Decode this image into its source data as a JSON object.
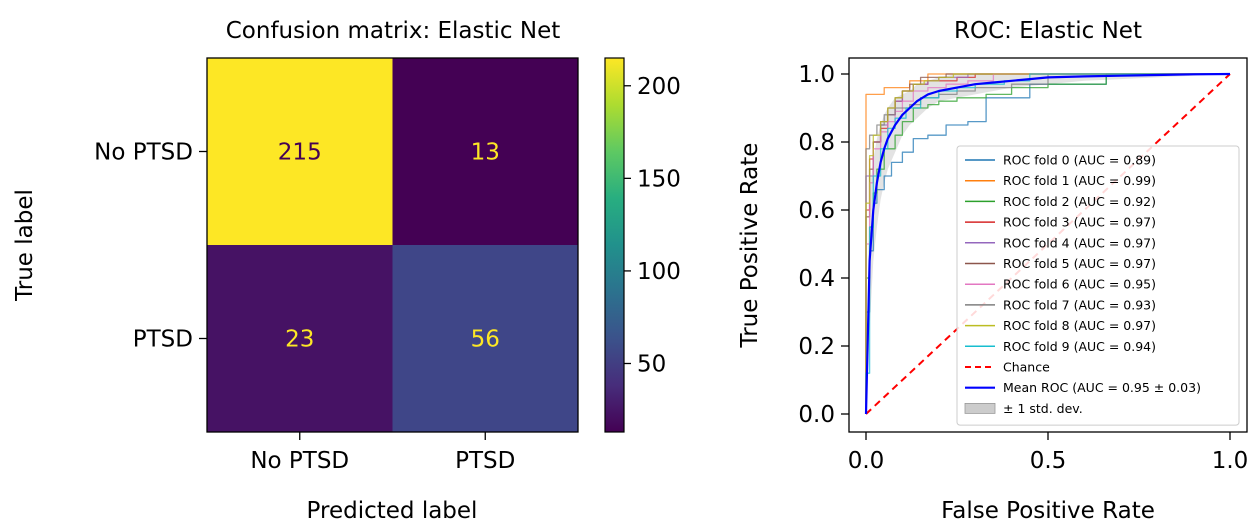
{
  "chart_data": [
    {
      "type": "heatmap",
      "title": "Confusion matrix: Elastic Net",
      "xlabel": "Predicted label",
      "ylabel": "True label",
      "x_categories": [
        "No PTSD",
        "PTSD"
      ],
      "y_categories": [
        "No PTSD",
        "PTSD"
      ],
      "values": [
        [
          215,
          13
        ],
        [
          23,
          56
        ]
      ],
      "colormap": "viridis",
      "colorbar": {
        "min": 13,
        "max": 215,
        "ticks": [
          50,
          100,
          150,
          200
        ],
        "tick_labels": [
          "50",
          "100",
          "150",
          "200"
        ]
      }
    },
    {
      "type": "line",
      "title": "ROC: Elastic Net",
      "xlabel": "False Positive Rate",
      "ylabel": "True Positive Rate",
      "xlim": [
        0,
        1
      ],
      "ylim": [
        0,
        1
      ],
      "x_ticks": [
        0.0,
        0.5,
        1.0
      ],
      "x_tick_labels": [
        "0.0",
        "0.5",
        "1.0"
      ],
      "y_ticks": [
        0.0,
        0.2,
        0.4,
        0.6,
        0.8,
        1.0
      ],
      "y_tick_labels": [
        "0.0",
        "0.2",
        "0.4",
        "0.6",
        "0.8",
        "1.0"
      ],
      "legend_position": "lower-right",
      "series": [
        {
          "name": "ROC fold 0 (AUC = 0.89)",
          "color": "#1f77b4",
          "x": [
            0,
            0.01,
            0.02,
            0.03,
            0.05,
            0.07,
            0.1,
            0.13,
            0.17,
            0.22,
            0.28,
            0.33,
            0.45,
            0.66,
            0.66,
            1.0
          ],
          "y": [
            0,
            0.3,
            0.48,
            0.62,
            0.66,
            0.7,
            0.74,
            0.77,
            0.81,
            0.82,
            0.85,
            0.86,
            0.93,
            0.97,
            1.0,
            1.0
          ]
        },
        {
          "name": "ROC fold 1 (AUC = 0.99)",
          "color": "#ff7f0e",
          "x": [
            0,
            0.0,
            0.02,
            0.05,
            0.08,
            0.1,
            0.12,
            0.15,
            0.17,
            0.17,
            1.0
          ],
          "y": [
            0,
            0.94,
            0.94,
            0.94,
            0.96,
            0.96,
            0.96,
            0.98,
            0.98,
            1.0,
            1.0
          ]
        },
        {
          "name": "ROC fold 2 (AUC = 0.92)",
          "color": "#2ca02c",
          "x": [
            0,
            0.01,
            0.02,
            0.03,
            0.05,
            0.08,
            0.1,
            0.13,
            0.17,
            0.2,
            0.25,
            0.33,
            0.4,
            0.5,
            0.66,
            0.66,
            1.0
          ],
          "y": [
            0,
            0.4,
            0.55,
            0.65,
            0.72,
            0.78,
            0.82,
            0.86,
            0.9,
            0.91,
            0.92,
            0.93,
            0.94,
            0.96,
            0.97,
            1.0,
            1.0
          ]
        },
        {
          "name": "ROC fold 3 (AUC = 0.97)",
          "color": "#d62728",
          "x": [
            0,
            0.01,
            0.02,
            0.04,
            0.06,
            0.08,
            0.1,
            0.13,
            0.17,
            0.2,
            0.25,
            0.3,
            0.3,
            1.0
          ],
          "y": [
            0,
            0.6,
            0.75,
            0.8,
            0.84,
            0.88,
            0.92,
            0.95,
            0.97,
            0.98,
            0.98,
            0.99,
            1.0,
            1.0
          ]
        },
        {
          "name": "ROC fold 4 (AUC = 0.97)",
          "color": "#9467bd",
          "x": [
            0,
            0.0,
            0.02,
            0.04,
            0.06,
            0.08,
            0.1,
            0.13,
            0.17,
            0.2,
            0.28,
            0.28,
            1.0
          ],
          "y": [
            0,
            0.56,
            0.7,
            0.8,
            0.85,
            0.88,
            0.92,
            0.95,
            0.97,
            0.98,
            0.99,
            1.0,
            1.0
          ]
        },
        {
          "name": "ROC fold 5 (AUC = 0.97)",
          "color": "#8c564b",
          "x": [
            0,
            0.01,
            0.02,
            0.04,
            0.06,
            0.08,
            0.1,
            0.12,
            0.15,
            0.18,
            0.22,
            0.22,
            1.0
          ],
          "y": [
            0,
            0.58,
            0.72,
            0.8,
            0.86,
            0.9,
            0.93,
            0.95,
            0.97,
            0.99,
            0.99,
            1.0,
            1.0
          ]
        },
        {
          "name": "ROC fold 6 (AUC = 0.95)",
          "color": "#e377c2",
          "x": [
            0,
            0.01,
            0.02,
            0.04,
            0.06,
            0.08,
            0.1,
            0.13,
            0.17,
            0.22,
            0.28,
            0.35,
            0.35,
            1.0
          ],
          "y": [
            0,
            0.5,
            0.68,
            0.78,
            0.83,
            0.86,
            0.89,
            0.92,
            0.95,
            0.96,
            0.97,
            0.98,
            1.0,
            1.0
          ]
        },
        {
          "name": "ROC fold 7 (AUC = 0.93)",
          "color": "#7f7f7f",
          "x": [
            0,
            0.0,
            0.01,
            0.03,
            0.05,
            0.08,
            0.12,
            0.15,
            0.2,
            0.25,
            0.3,
            0.4,
            0.5,
            0.5,
            1.0
          ],
          "y": [
            0,
            0.78,
            0.78,
            0.82,
            0.85,
            0.88,
            0.9,
            0.91,
            0.93,
            0.94,
            0.95,
            0.96,
            0.97,
            1.0,
            1.0
          ]
        },
        {
          "name": "ROC fold 8 (AUC = 0.97)",
          "color": "#bcbd22",
          "x": [
            0,
            0.01,
            0.02,
            0.04,
            0.06,
            0.08,
            0.1,
            0.13,
            0.16,
            0.2,
            0.24,
            0.24,
            1.0
          ],
          "y": [
            0,
            0.62,
            0.76,
            0.82,
            0.86,
            0.9,
            0.93,
            0.95,
            0.97,
            0.98,
            0.99,
            1.0,
            1.0
          ]
        },
        {
          "name": "ROC fold 9 (AUC = 0.94)",
          "color": "#17becf",
          "x": [
            0,
            0.01,
            0.02,
            0.04,
            0.06,
            0.08,
            0.11,
            0.15,
            0.2,
            0.25,
            0.3,
            0.38,
            0.45,
            0.45,
            1.0
          ],
          "y": [
            0,
            0.12,
            0.55,
            0.7,
            0.78,
            0.84,
            0.87,
            0.9,
            0.93,
            0.95,
            0.96,
            0.97,
            0.98,
            1.0,
            1.0
          ]
        },
        {
          "name": "Chance",
          "color": "#ff0000",
          "dashed": true,
          "x": [
            0,
            1
          ],
          "y": [
            0,
            1
          ]
        },
        {
          "name": "Mean ROC (AUC = 0.95 ± 0.03)",
          "color": "#0000ff",
          "x": [
            0,
            0.01,
            0.02,
            0.03,
            0.04,
            0.05,
            0.06,
            0.08,
            0.1,
            0.12,
            0.14,
            0.17,
            0.2,
            0.25,
            0.3,
            0.35,
            0.4,
            0.45,
            0.5,
            0.6,
            0.7,
            0.8,
            0.9,
            1.0
          ],
          "y": [
            0,
            0.45,
            0.6,
            0.68,
            0.74,
            0.78,
            0.81,
            0.85,
            0.88,
            0.9,
            0.92,
            0.94,
            0.95,
            0.96,
            0.97,
            0.975,
            0.98,
            0.985,
            0.99,
            0.993,
            0.995,
            0.997,
            0.999,
            1.0
          ]
        },
        {
          "name": "± 1 std. dev.",
          "color": "#cccccc",
          "band": true,
          "x": [
            0,
            0.01,
            0.02,
            0.03,
            0.04,
            0.05,
            0.06,
            0.08,
            0.1,
            0.12,
            0.14,
            0.17,
            0.2,
            0.25,
            0.3,
            0.35,
            0.4,
            0.45,
            0.5,
            0.6,
            0.7,
            0.8,
            0.9,
            1.0
          ],
          "lower": [
            0,
            0.25,
            0.45,
            0.55,
            0.63,
            0.68,
            0.72,
            0.77,
            0.82,
            0.85,
            0.87,
            0.9,
            0.92,
            0.93,
            0.94,
            0.95,
            0.96,
            0.965,
            0.97,
            0.98,
            0.985,
            0.99,
            0.995,
            1.0
          ],
          "upper": [
            0,
            0.65,
            0.75,
            0.81,
            0.85,
            0.88,
            0.9,
            0.93,
            0.94,
            0.95,
            0.97,
            0.98,
            0.99,
            1.0,
            1.0,
            1.0,
            1.0,
            1.0,
            1.0,
            1.0,
            1.0,
            1.0,
            1.0,
            1.0
          ]
        }
      ]
    }
  ]
}
